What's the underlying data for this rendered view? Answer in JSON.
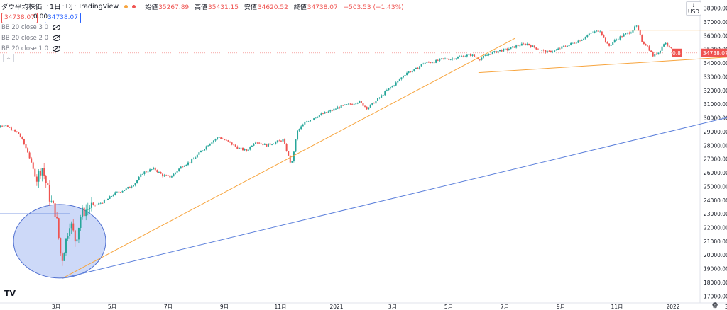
{
  "header": {
    "symbol": "ダウ平均株価",
    "interval": "1日",
    "exchange": "DJ",
    "source": "TradingView",
    "ohlc": [
      {
        "key": "始値",
        "value": "35267.89"
      },
      {
        "key": "高値",
        "value": "35431.15"
      },
      {
        "key": "安値",
        "value": "34620.52"
      },
      {
        "key": "終値",
        "value": "34738.07"
      },
      {
        "key": "",
        "value": "−503.53 (−1.43%)"
      }
    ],
    "sell_price": "34738.07",
    "spread": "0.00",
    "buy_price": "34738.07"
  },
  "indicators": [
    "BB 20 close 3 0",
    "BB 20 close 2 0",
    "BB 20 close 1 0"
  ],
  "currency": "USD",
  "currency_marker": "↓",
  "colors": {
    "up": "#26a69a",
    "down": "#ef5350",
    "trend_orange": "#f7a43d",
    "trend_blue": "#5b7fdb",
    "ellipse_fill": "#b8c9f5",
    "ellipse_stroke": "#4f6fd0"
  },
  "chart_data": {
    "type": "candlestick",
    "title": "ダウ平均株価 · 1日 · DJ",
    "y_axis_ticks": [
      17000,
      18000,
      19000,
      20000,
      21000,
      22000,
      23000,
      24000,
      25000,
      26000,
      27000,
      28000,
      29000,
      30000,
      31000,
      32000,
      33000,
      34000,
      35000,
      36000,
      37000,
      38000
    ],
    "y_tick_labels": [
      "17000.00",
      "18000.00",
      "19000.00",
      "20000.00",
      "21000.00",
      "22000.00",
      "23000.00",
      "24000.00",
      "25000.00",
      "26000.00",
      "27000.00",
      "28000.00",
      "29000.00",
      "30000.00",
      "31000.00",
      "32000.00",
      "33000.00",
      "34000.00",
      "35000.00",
      "36000.00",
      "37000.00",
      "38000.00"
    ],
    "ylim": [
      16500,
      38600
    ],
    "x_axis_labels": [
      "3月",
      "5月",
      "7月",
      "9月",
      "11月",
      "2021",
      "3月",
      "5月",
      "7月",
      "9月",
      "11月",
      "2022",
      "3月"
    ],
    "price_anchors": [
      [
        0,
        28900
      ],
      [
        0.3,
        29200
      ],
      [
        0.5,
        29500
      ],
      [
        0.8,
        29300
      ],
      [
        1.2,
        28800
      ],
      [
        1.5,
        27500
      ],
      [
        1.8,
        25500
      ],
      [
        2.0,
        26500
      ],
      [
        2.3,
        24000
      ],
      [
        2.5,
        23000
      ],
      [
        2.7,
        19500
      ],
      [
        2.9,
        21500
      ],
      [
        3.0,
        22500
      ],
      [
        3.2,
        21000
      ],
      [
        3.4,
        23000
      ],
      [
        3.7,
        23500
      ],
      [
        4.0,
        23700
      ],
      [
        4.3,
        24000
      ],
      [
        4.6,
        24500
      ],
      [
        5.0,
        24800
      ],
      [
        5.3,
        25200
      ],
      [
        5.6,
        26000
      ],
      [
        6.0,
        26300
      ],
      [
        6.3,
        25800
      ],
      [
        6.6,
        25700
      ],
      [
        7.0,
        26500
      ],
      [
        7.3,
        26800
      ],
      [
        7.6,
        27400
      ],
      [
        8.0,
        28200
      ],
      [
        8.3,
        28600
      ],
      [
        8.6,
        28300
      ],
      [
        9.0,
        27800
      ],
      [
        9.3,
        27600
      ],
      [
        9.6,
        28300
      ],
      [
        10.0,
        28000
      ],
      [
        10.3,
        28200
      ],
      [
        10.6,
        28400
      ],
      [
        10.9,
        26500
      ],
      [
        11.1,
        29000
      ],
      [
        11.4,
        29700
      ],
      [
        11.7,
        30000
      ],
      [
        12.0,
        30300
      ],
      [
        12.3,
        30500
      ],
      [
        12.6,
        30800
      ],
      [
        13.0,
        31000
      ],
      [
        13.3,
        31200
      ],
      [
        13.6,
        30700
      ],
      [
        14.0,
        31400
      ],
      [
        14.3,
        32000
      ],
      [
        14.6,
        32500
      ],
      [
        15.0,
        33300
      ],
      [
        15.3,
        33500
      ],
      [
        15.6,
        34000
      ],
      [
        16.0,
        34100
      ],
      [
        16.3,
        34300
      ],
      [
        16.6,
        34300
      ],
      [
        17.0,
        34500
      ],
      [
        17.3,
        34600
      ],
      [
        17.6,
        34300
      ],
      [
        18.0,
        34700
      ],
      [
        18.3,
        34900
      ],
      [
        18.6,
        35000
      ],
      [
        19.0,
        35300
      ],
      [
        19.3,
        35400
      ],
      [
        19.6,
        35100
      ],
      [
        20.0,
        34800
      ],
      [
        20.3,
        34900
      ],
      [
        20.6,
        35200
      ],
      [
        21.0,
        35500
      ],
      [
        21.3,
        35800
      ],
      [
        21.6,
        36200
      ],
      [
        21.9,
        36400
      ],
      [
        22.2,
        35200
      ],
      [
        22.4,
        35600
      ],
      [
        22.7,
        36000
      ],
      [
        23.0,
        36300
      ],
      [
        23.2,
        36700
      ],
      [
        23.4,
        35600
      ],
      [
        23.6,
        35200
      ],
      [
        23.8,
        34500
      ],
      [
        24.0,
        34800
      ],
      [
        24.2,
        35500
      ],
      [
        24.4,
        35200
      ],
      [
        24.5,
        34738
      ]
    ],
    "price_line": 34738.07,
    "last_close_label": "34738.07",
    "countdown_label": "0.8",
    "trendlines": [
      {
        "color": "orange",
        "from": [
          "2020-03-23",
          18300
        ],
        "to": [
          "2021-07-27",
          35800
        ]
      },
      {
        "color": "orange",
        "from": [
          "2021-06-18",
          33300
        ],
        "to": [
          "2022-03-31",
          34500
        ]
      },
      {
        "color": "orange",
        "from": [
          "2021-11-08",
          36400
        ],
        "to": [
          "2022-03-31",
          36400
        ]
      },
      {
        "color": "blue",
        "from": [
          "2020-03-23",
          18300
        ],
        "to": [
          "2022-03-31",
          30300
        ]
      },
      {
        "color": "blue",
        "from": [
          "2020-01-01",
          23000
        ],
        "to": [
          "2020-04-01",
          23000
        ]
      }
    ],
    "ellipse": {
      "center": [
        "2020-03-20",
        21000
      ],
      "label": ""
    },
    "grid": false
  }
}
